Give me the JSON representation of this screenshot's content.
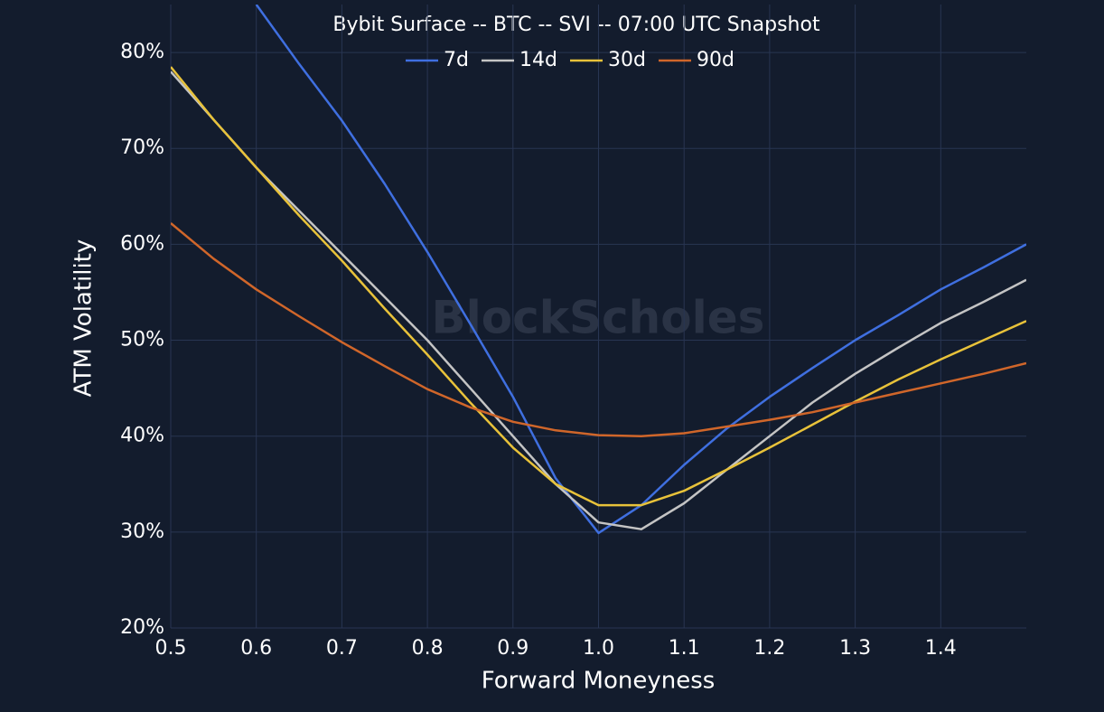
{
  "chart_data": {
    "type": "line",
    "title": "Bybit Surface -- BTC -- SVI -- 07:00 UTC Snapshot",
    "watermark": "BlockScholes",
    "x_label": "Forward Moneyness",
    "y_label": "ATM Volatility",
    "x": [
      0.5,
      0.55,
      0.6,
      0.65,
      0.7,
      0.75,
      0.8,
      0.85,
      0.9,
      0.95,
      1.0,
      1.05,
      1.1,
      1.15,
      1.2,
      1.25,
      1.3,
      1.35,
      1.4,
      1.45,
      1.5
    ],
    "series": [
      {
        "name": "7d",
        "color": "#3f6fe0",
        "values": [
          null,
          null,
          85,
          78.8,
          72.9,
          66.3,
          59.2,
          51.7,
          44.1,
          35.6,
          29.9,
          32.8,
          37.0,
          40.8,
          44.1,
          47.1,
          50.0,
          52.6,
          55.3,
          57.6,
          60.0
        ]
      },
      {
        "name": "14d",
        "color": "#c4c4c4",
        "values": [
          78,
          73,
          68,
          63.5,
          59,
          54.5,
          50,
          45,
          40,
          35,
          31,
          30.3,
          33,
          36.5,
          40,
          43.5,
          46.5,
          49.2,
          51.8,
          54,
          56.3
        ]
      },
      {
        "name": "30d",
        "color": "#e8c23a",
        "values": [
          78.5,
          73,
          68,
          63,
          58.3,
          53.3,
          48.5,
          43.5,
          38.8,
          35,
          32.8,
          32.8,
          34.3,
          36.5,
          38.8,
          41.2,
          43.6,
          45.9,
          48,
          50,
          52
        ]
      },
      {
        "name": "90d",
        "color": "#d0662a",
        "values": [
          62.2,
          58.5,
          55.3,
          52.5,
          49.8,
          47.3,
          44.9,
          43,
          41.5,
          40.6,
          40.1,
          40,
          40.3,
          41,
          41.7,
          42.5,
          43.5,
          44.5,
          45.5,
          46.5,
          47.6
        ]
      }
    ],
    "xlim": [
      0.5,
      1.5
    ],
    "xticks": [
      0.5,
      0.6,
      0.7,
      0.8,
      0.9,
      {
        "value": 1,
        "label": "1.0"
      },
      1.1,
      1.2,
      1.3,
      1.4
    ],
    "ylim": [
      20,
      85
    ],
    "yticks": [
      {
        "value": 20,
        "label": "20%"
      },
      {
        "value": 30,
        "label": "30%"
      },
      {
        "value": 40,
        "label": "40%"
      },
      {
        "value": 50,
        "label": "50%"
      },
      {
        "value": 60,
        "label": "60%"
      },
      {
        "value": 70,
        "label": "70%"
      },
      {
        "value": 80,
        "label": "80%"
      }
    ],
    "grid": true
  }
}
